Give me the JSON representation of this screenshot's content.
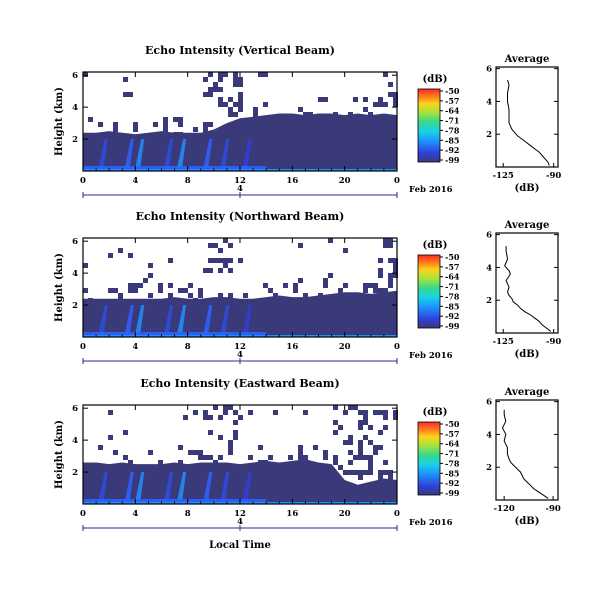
{
  "chart_data": [
    {
      "type": "heatmap",
      "title": "Echo Intensity (Vertical Beam)",
      "ylabel": "Height (km)",
      "xticks": [
        "0",
        "4",
        "8",
        "12",
        "16",
        "20",
        "0"
      ],
      "yticks": [
        "6",
        "4",
        "2"
      ],
      "date_tick": "4",
      "date_label": "Feb 2016",
      "colorbar": {
        "unit": "(dB)",
        "ticks": [
          "-50",
          "-57",
          "-64",
          "-71",
          "-78",
          "-85",
          "-92",
          "-99"
        ]
      },
      "boundary_km": [
        2.4,
        2.4,
        2.5,
        2.4,
        2.3,
        2.4,
        2.5,
        2.4,
        2.4,
        2.4,
        2.6,
        3.0,
        3.3,
        3.4,
        3.5,
        3.6,
        3.6,
        3.5,
        3.6,
        3.6,
        3.5,
        3.6,
        3.5,
        3.6,
        3.5
      ],
      "profile": {
        "title": "Average",
        "xlabel": "(dB)",
        "xticks": [
          "-125",
          "-90"
        ],
        "yticks": [
          "6",
          "4",
          "2"
        ],
        "height_km": [
          0.1,
          0.3,
          0.5,
          0.7,
          0.9,
          1.1,
          1.3,
          1.5,
          1.7,
          1.9,
          2.1,
          2.3,
          2.5,
          2.7,
          3.0,
          3.5,
          4.0,
          4.5,
          5.0,
          5.3
        ],
        "db": [
          -93,
          -94,
          -96,
          -98,
          -100,
          -103,
          -106,
          -109,
          -112,
          -115,
          -117,
          -119,
          -120,
          -121,
          -121,
          -121,
          -122,
          -122,
          -121,
          -122
        ]
      }
    },
    {
      "type": "heatmap",
      "title": "Echo Intensity (Northward Beam)",
      "ylabel": "Height (km)",
      "xticks": [
        "0",
        "4",
        "8",
        "12",
        "16",
        "20",
        "0"
      ],
      "yticks": [
        "6",
        "4",
        "2"
      ],
      "date_tick": "4",
      "date_label": "Feb 2016",
      "colorbar": {
        "unit": "(dB)",
        "ticks": [
          "-50",
          "-57",
          "-64",
          "-71",
          "-78",
          "-85",
          "-92",
          "-99"
        ]
      },
      "boundary_km": [
        2.4,
        2.4,
        2.4,
        2.4,
        2.4,
        2.4,
        2.4,
        2.5,
        2.4,
        2.4,
        2.5,
        2.5,
        2.4,
        2.4,
        2.5,
        2.6,
        2.5,
        2.5,
        2.6,
        2.7,
        2.8,
        2.8,
        2.7,
        2.8,
        2.9
      ],
      "profile": {
        "title": "Average",
        "xlabel": "(dB)",
        "xticks": [
          "-125",
          "-90"
        ],
        "yticks": [
          "6",
          "4",
          "2"
        ],
        "height_km": [
          0.1,
          0.3,
          0.5,
          0.7,
          0.9,
          1.1,
          1.3,
          1.5,
          1.7,
          1.9,
          2.1,
          2.3,
          2.5,
          2.8,
          3.2,
          3.6,
          3.8,
          4.1,
          4.5,
          5.0,
          5.3
        ],
        "db": [
          -92,
          -95,
          -98,
          -100,
          -103,
          -106,
          -110,
          -113,
          -115,
          -118,
          -119,
          -121,
          -122,
          -121,
          -123,
          -120,
          -121,
          -124,
          -122,
          -123,
          -123
        ]
      }
    },
    {
      "type": "heatmap",
      "title": "Echo Intensity (Eastward Beam)",
      "ylabel": "Height (km)",
      "xlabel": "Local Time",
      "xticks": [
        "0",
        "4",
        "8",
        "12",
        "16",
        "20",
        "0"
      ],
      "yticks": [
        "6",
        "4",
        "2"
      ],
      "date_tick": "4",
      "date_label": "Feb 2016",
      "colorbar": {
        "unit": "(dB)",
        "ticks": [
          "-50",
          "-57",
          "-64",
          "-71",
          "-78",
          "-85",
          "-92",
          "-99"
        ]
      },
      "boundary_km": [
        2.6,
        2.6,
        2.5,
        2.6,
        2.5,
        2.5,
        2.5,
        2.6,
        2.5,
        2.6,
        2.6,
        2.6,
        2.5,
        2.6,
        2.7,
        2.6,
        2.7,
        2.8,
        2.6,
        2.5,
        1.5,
        1.2,
        1.4,
        1.6,
        1.5
      ],
      "profile": {
        "title": "Average",
        "xlabel": "(dB)",
        "xticks": [
          "-120",
          "-90"
        ],
        "yticks": [
          "6",
          "4",
          "2"
        ],
        "height_km": [
          0.1,
          0.3,
          0.5,
          0.7,
          0.9,
          1.1,
          1.3,
          1.5,
          1.7,
          1.9,
          2.1,
          2.3,
          2.5,
          2.8,
          3.2,
          3.6,
          4.0,
          4.4,
          4.8,
          5.2,
          5.5
        ],
        "db": [
          -93,
          -96,
          -99,
          -102,
          -104,
          -106,
          -108,
          -109,
          -110,
          -112,
          -114,
          -116,
          -117,
          -118,
          -118,
          -120,
          -119,
          -121,
          -119,
          -120,
          -120
        ]
      }
    }
  ]
}
